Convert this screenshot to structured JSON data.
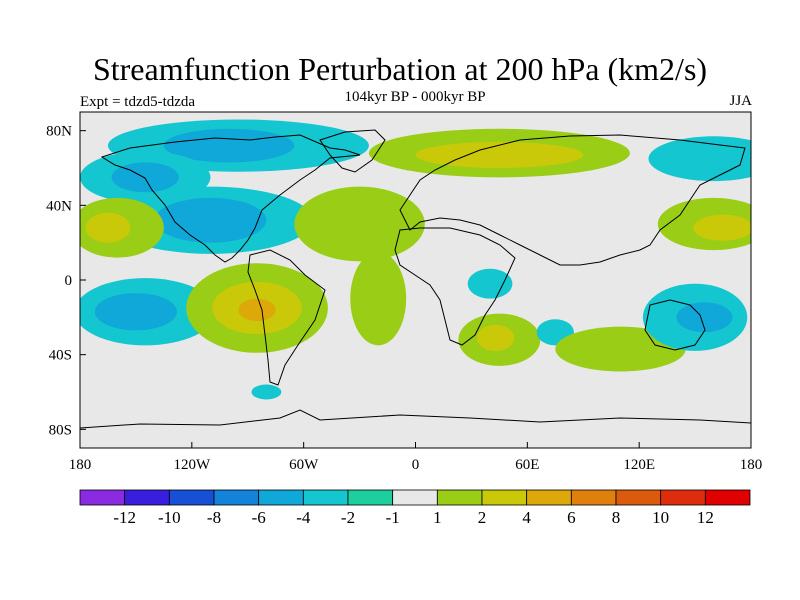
{
  "chart_data": {
    "type": "heatmap",
    "title": "Streamfunction Perturbation at 200 hPa (km2/s)",
    "left_label": "Expt = tdzd5-tdzda",
    "center_label": "104kyr BP - 000kyr BP",
    "right_label": "JJA",
    "x_ticks": [
      "180",
      "120W",
      "60W",
      "0",
      "60E",
      "120E",
      "180"
    ],
    "y_ticks": [
      "80N",
      "40N",
      "0",
      "40S",
      "80S"
    ],
    "colorbar": {
      "labels": [
        "-12",
        "-10",
        "-8",
        "-6",
        "-4",
        "-2",
        "-1",
        "1",
        "2",
        "4",
        "6",
        "8",
        "10",
        "12"
      ],
      "colors": [
        "#8a2be2",
        "#3a1ee0",
        "#1750d6",
        "#1283d8",
        "#0fa8d8",
        "#14c6cf",
        "#1ccf9c",
        "#e8e8e8",
        "#9acd16",
        "#c9c90a",
        "#dca80a",
        "#e0800c",
        "#dc5a0c",
        "#de2d0c",
        "#e00000"
      ]
    },
    "field_regions": [
      {
        "level": -2,
        "lon": -95,
        "lat": 72,
        "rlon": 70,
        "rlat": 14
      },
      {
        "level": -4,
        "lon": -100,
        "lat": 72,
        "rlon": 35,
        "rlat": 9
      },
      {
        "level": -2,
        "lon": -145,
        "lat": 55,
        "rlon": 35,
        "rlat": 14
      },
      {
        "level": -4,
        "lon": -145,
        "lat": 55,
        "rlon": 18,
        "rlat": 8
      },
      {
        "level": -2,
        "lon": -110,
        "lat": 32,
        "rlon": 55,
        "rlat": 18
      },
      {
        "level": -4,
        "lon": -110,
        "lat": 32,
        "rlon": 30,
        "rlat": 12
      },
      {
        "level": -2,
        "lon": -145,
        "lat": -17,
        "rlon": 38,
        "rlat": 18
      },
      {
        "level": -4,
        "lon": -150,
        "lat": -17,
        "rlon": 22,
        "rlat": 10
      },
      {
        "level": 2,
        "lon": -160,
        "lat": 28,
        "rlon": 25,
        "rlat": 16
      },
      {
        "level": 4,
        "lon": -165,
        "lat": 28,
        "rlon": 12,
        "rlat": 8
      },
      {
        "level": 2,
        "lon": -85,
        "lat": -15,
        "rlon": 38,
        "rlat": 24
      },
      {
        "level": 4,
        "lon": -85,
        "lat": -15,
        "rlon": 24,
        "rlat": 14
      },
      {
        "level": 6,
        "lon": -85,
        "lat": -16,
        "rlon": 10,
        "rlat": 6
      },
      {
        "level": 2,
        "lon": 45,
        "lat": 68,
        "rlon": 70,
        "rlat": 13
      },
      {
        "level": 4,
        "lon": 45,
        "lat": 67,
        "rlon": 45,
        "rlat": 7
      },
      {
        "level": 2,
        "lon": -30,
        "lat": 30,
        "rlon": 35,
        "rlat": 20
      },
      {
        "level": 2,
        "lon": -20,
        "lat": -10,
        "rlon": 15,
        "rlat": 25
      },
      {
        "level": 2,
        "lon": 45,
        "lat": -32,
        "rlon": 22,
        "rlat": 14
      },
      {
        "level": 4,
        "lon": 43,
        "lat": -31,
        "rlon": 10,
        "rlat": 7
      },
      {
        "level": -2,
        "lon": 40,
        "lat": -2,
        "rlon": 12,
        "rlat": 8
      },
      {
        "level": -2,
        "lon": 75,
        "lat": -28,
        "rlon": 10,
        "rlat": 7
      },
      {
        "level": 2,
        "lon": 110,
        "lat": -37,
        "rlon": 35,
        "rlat": 12
      },
      {
        "level": -2,
        "lon": 150,
        "lat": -20,
        "rlon": 28,
        "rlat": 18
      },
      {
        "level": -4,
        "lon": 155,
        "lat": -20,
        "rlon": 15,
        "rlat": 8
      },
      {
        "level": 2,
        "lon": 160,
        "lat": 30,
        "rlon": 30,
        "rlat": 14
      },
      {
        "level": 4,
        "lon": 165,
        "lat": 28,
        "rlon": 16,
        "rlat": 7
      },
      {
        "level": -2,
        "lon": 160,
        "lat": 65,
        "rlon": 35,
        "rlat": 12
      },
      {
        "level": -2,
        "lon": -80,
        "lat": -60,
        "rlon": 8,
        "rlat": 4
      }
    ]
  }
}
